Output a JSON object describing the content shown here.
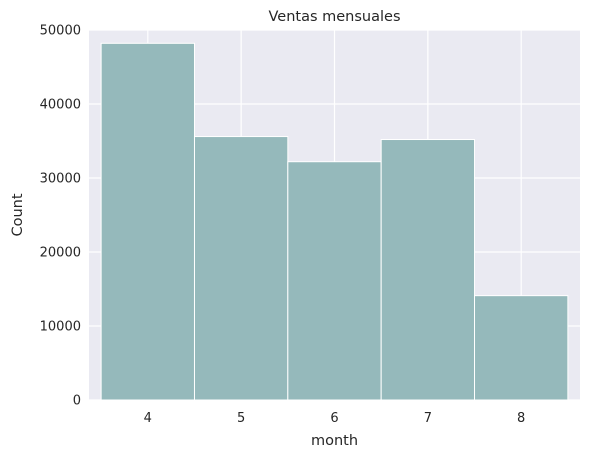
{
  "chart_data": {
    "type": "bar",
    "title": "Ventas mensuales",
    "xlabel": "month",
    "ylabel": "Count",
    "categories": [
      "4",
      "5",
      "6",
      "7",
      "8"
    ],
    "values": [
      48200,
      35600,
      32200,
      35200,
      14100
    ],
    "ylim": [
      0,
      50000
    ],
    "xlim": [
      3.37,
      8.63
    ],
    "yticks": [
      0,
      10000,
      20000,
      30000,
      40000,
      50000
    ],
    "ytick_labels": [
      "0",
      "10000",
      "20000",
      "30000",
      "40000",
      "50000"
    ],
    "grid": true,
    "legend": "none",
    "colors": {
      "bar_fill": "#95b9bb",
      "bar_stroke": "#ffffff",
      "plot_background": "#eaeaf2",
      "grid": "#ffffff"
    }
  }
}
